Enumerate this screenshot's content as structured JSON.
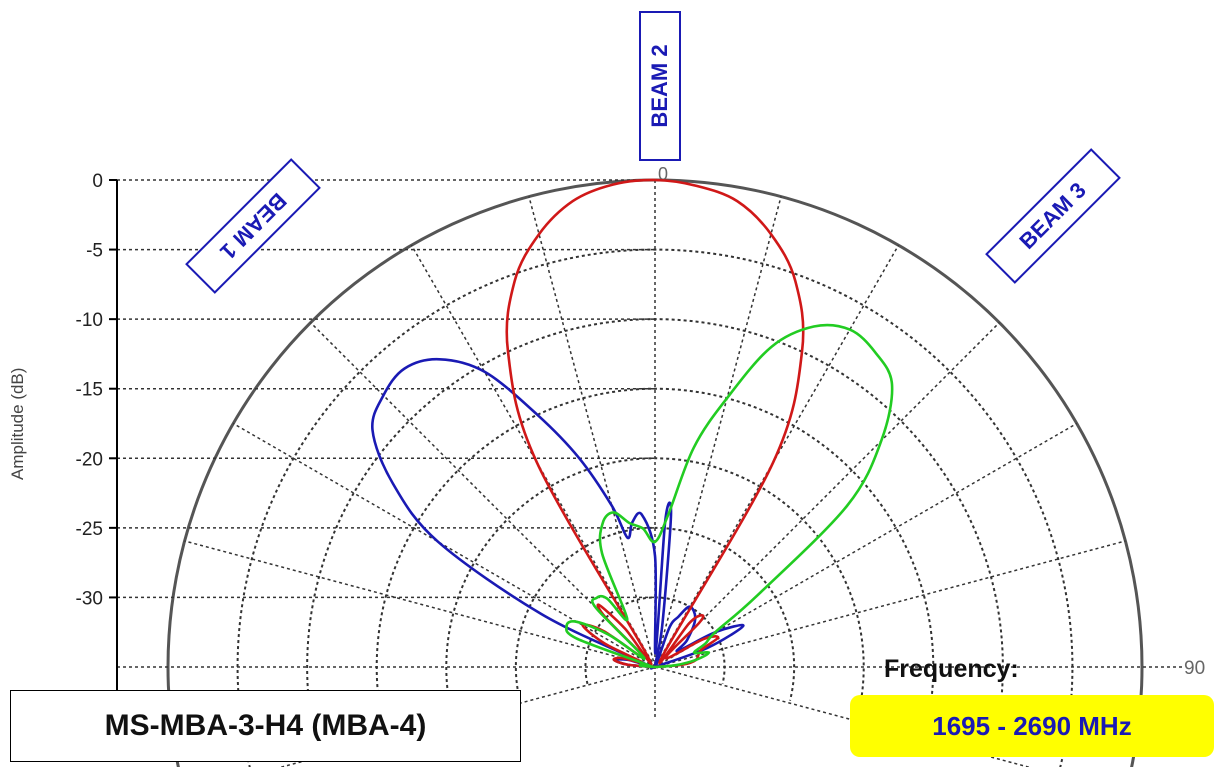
{
  "chart_data": {
    "type": "polar",
    "ylabel": "Amplitude (dB)",
    "r_ticks": [
      0,
      -5,
      -10,
      -15,
      -20,
      -25,
      -30
    ],
    "r_range": [
      -35,
      0
    ],
    "angle_labels": [
      "0",
      "90"
    ],
    "grid": true,
    "series": [
      {
        "color": "#1a1ab4",
        "points": [
          [
            -90,
            -35
          ],
          [
            -85,
            -33
          ],
          [
            -80,
            -32
          ],
          [
            -75,
            -33
          ],
          [
            -70,
            -34
          ],
          [
            -65,
            -26
          ],
          [
            -60,
            -17
          ],
          [
            -55,
            -12
          ],
          [
            -50,
            -8.5
          ],
          [
            -45,
            -7.4
          ],
          [
            -40,
            -7
          ],
          [
            -35,
            -8
          ],
          [
            -30,
            -10.5
          ],
          [
            -25,
            -15
          ],
          [
            -20,
            -19
          ],
          [
            -15,
            -23
          ],
          [
            -12,
            -25.5
          ],
          [
            -9,
            -24.5
          ],
          [
            -5,
            -24
          ],
          [
            0,
            -27
          ],
          [
            2,
            -34
          ],
          [
            4,
            -24.5
          ],
          [
            6,
            -24
          ],
          [
            10,
            -32
          ],
          [
            15,
            -35
          ],
          [
            20,
            -32
          ],
          [
            25,
            -31
          ],
          [
            30,
            -30
          ],
          [
            40,
            -30.5
          ],
          [
            50,
            -32
          ],
          [
            55,
            -33
          ],
          [
            60,
            -30
          ],
          [
            65,
            -28
          ],
          [
            70,
            -31
          ],
          [
            80,
            -35
          ],
          [
            90,
            -35
          ]
        ]
      },
      {
        "color": "#d01818",
        "points": [
          [
            -90,
            -35
          ],
          [
            -85,
            -33
          ],
          [
            -80,
            -32
          ],
          [
            -75,
            -32.5
          ],
          [
            -70,
            -34
          ],
          [
            -65,
            -31
          ],
          [
            -60,
            -29
          ],
          [
            -55,
            -30.5
          ],
          [
            -50,
            -34
          ],
          [
            -45,
            -30
          ],
          [
            -42,
            -29
          ],
          [
            -38,
            -31.5
          ],
          [
            -34,
            -34
          ],
          [
            -30,
            -18
          ],
          [
            -25,
            -10
          ],
          [
            -20,
            -5.5
          ],
          [
            -15,
            -2.8
          ],
          [
            -10,
            -1
          ],
          [
            -5,
            -0.2
          ],
          [
            0,
            0
          ],
          [
            5,
            -0.3
          ],
          [
            10,
            -1
          ],
          [
            15,
            -2.8
          ],
          [
            20,
            -5.5
          ],
          [
            25,
            -10
          ],
          [
            30,
            -18
          ],
          [
            34,
            -34
          ],
          [
            38,
            -31
          ],
          [
            42,
            -30
          ],
          [
            45,
            -30.5
          ],
          [
            50,
            -34
          ],
          [
            60,
            -31
          ],
          [
            65,
            -30
          ],
          [
            70,
            -31.5
          ],
          [
            80,
            -32
          ],
          [
            85,
            -33
          ],
          [
            90,
            -35
          ]
        ]
      },
      {
        "color": "#22cc22",
        "points": [
          [
            -90,
            -35
          ],
          [
            -85,
            -34
          ],
          [
            -80,
            -34
          ],
          [
            -75,
            -34.5
          ],
          [
            -70,
            -29
          ],
          [
            -65,
            -28
          ],
          [
            -60,
            -28.5
          ],
          [
            -55,
            -31
          ],
          [
            -50,
            -34
          ],
          [
            -45,
            -29
          ],
          [
            -40,
            -28.5
          ],
          [
            -35,
            -29
          ],
          [
            -30,
            -31
          ],
          [
            -25,
            -26
          ],
          [
            -20,
            -24
          ],
          [
            -15,
            -23.5
          ],
          [
            -10,
            -24.5
          ],
          [
            -5,
            -25
          ],
          [
            0,
            -26
          ],
          [
            5,
            -24
          ],
          [
            10,
            -19
          ],
          [
            15,
            -15
          ],
          [
            20,
            -10.5
          ],
          [
            25,
            -8
          ],
          [
            30,
            -7
          ],
          [
            35,
            -7.4
          ],
          [
            40,
            -8.5
          ],
          [
            45,
            -12
          ],
          [
            50,
            -17
          ],
          [
            55,
            -26
          ],
          [
            60,
            -30
          ],
          [
            65,
            -31
          ],
          [
            70,
            -32
          ],
          [
            75,
            -31
          ],
          [
            80,
            -32
          ],
          [
            85,
            -33.5
          ],
          [
            90,
            -35
          ]
        ]
      }
    ]
  },
  "labels": {
    "beam1": "BEAM 1",
    "beam2": "BEAM 2",
    "beam3": "BEAM 3",
    "model": "MS-MBA-3-H4 (MBA-4)",
    "frequency_label": "Frequency:",
    "frequency_value": "1695 - 2690 MHz"
  }
}
